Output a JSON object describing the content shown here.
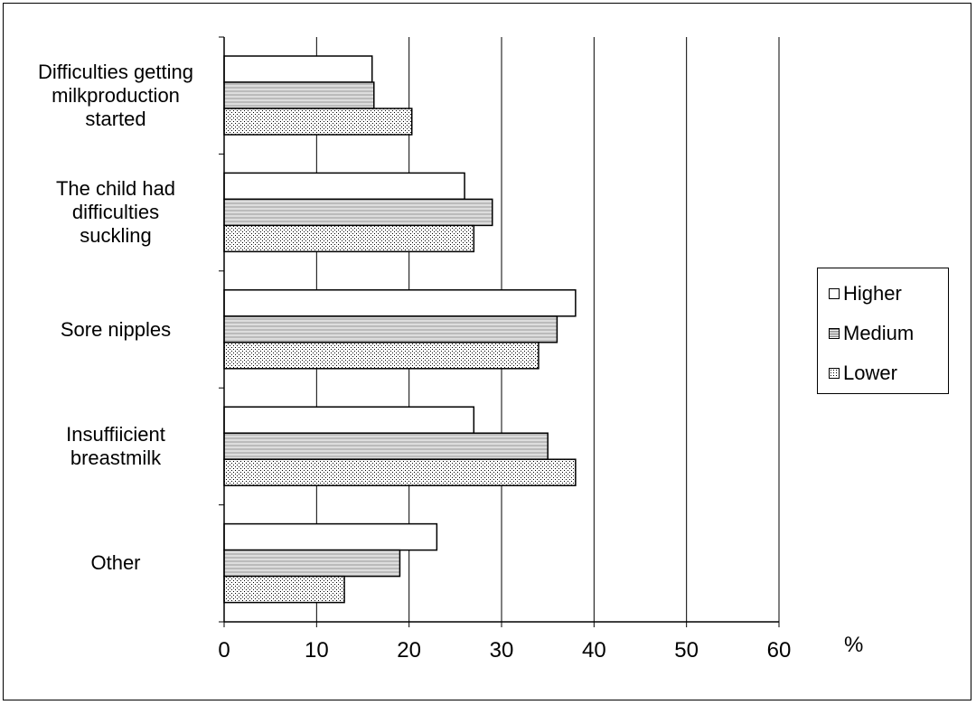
{
  "chart_data": {
    "type": "bar",
    "orientation": "horizontal",
    "categories": [
      "Difficulties getting\nmilkproduction\nstarted",
      "The child had\ndifficulties\nsuckling",
      "Sore nipples",
      "Insuffiicient\nbreastmilk",
      "Other"
    ],
    "series": [
      {
        "name": "Higher",
        "values": [
          16,
          26,
          38,
          27,
          23
        ],
        "pattern": "blank"
      },
      {
        "name": "Medium",
        "values": [
          16.2,
          29,
          36,
          35,
          19
        ],
        "pattern": "horizontal-lines"
      },
      {
        "name": "Lower",
        "values": [
          20.3,
          27,
          34,
          38,
          13
        ],
        "pattern": "dots"
      }
    ],
    "xlabel": "%",
    "xlim": [
      0,
      60
    ],
    "xticks": [
      "0",
      "10",
      "20",
      "30",
      "40",
      "50",
      "60"
    ],
    "grid": true,
    "legend_position": "right"
  }
}
